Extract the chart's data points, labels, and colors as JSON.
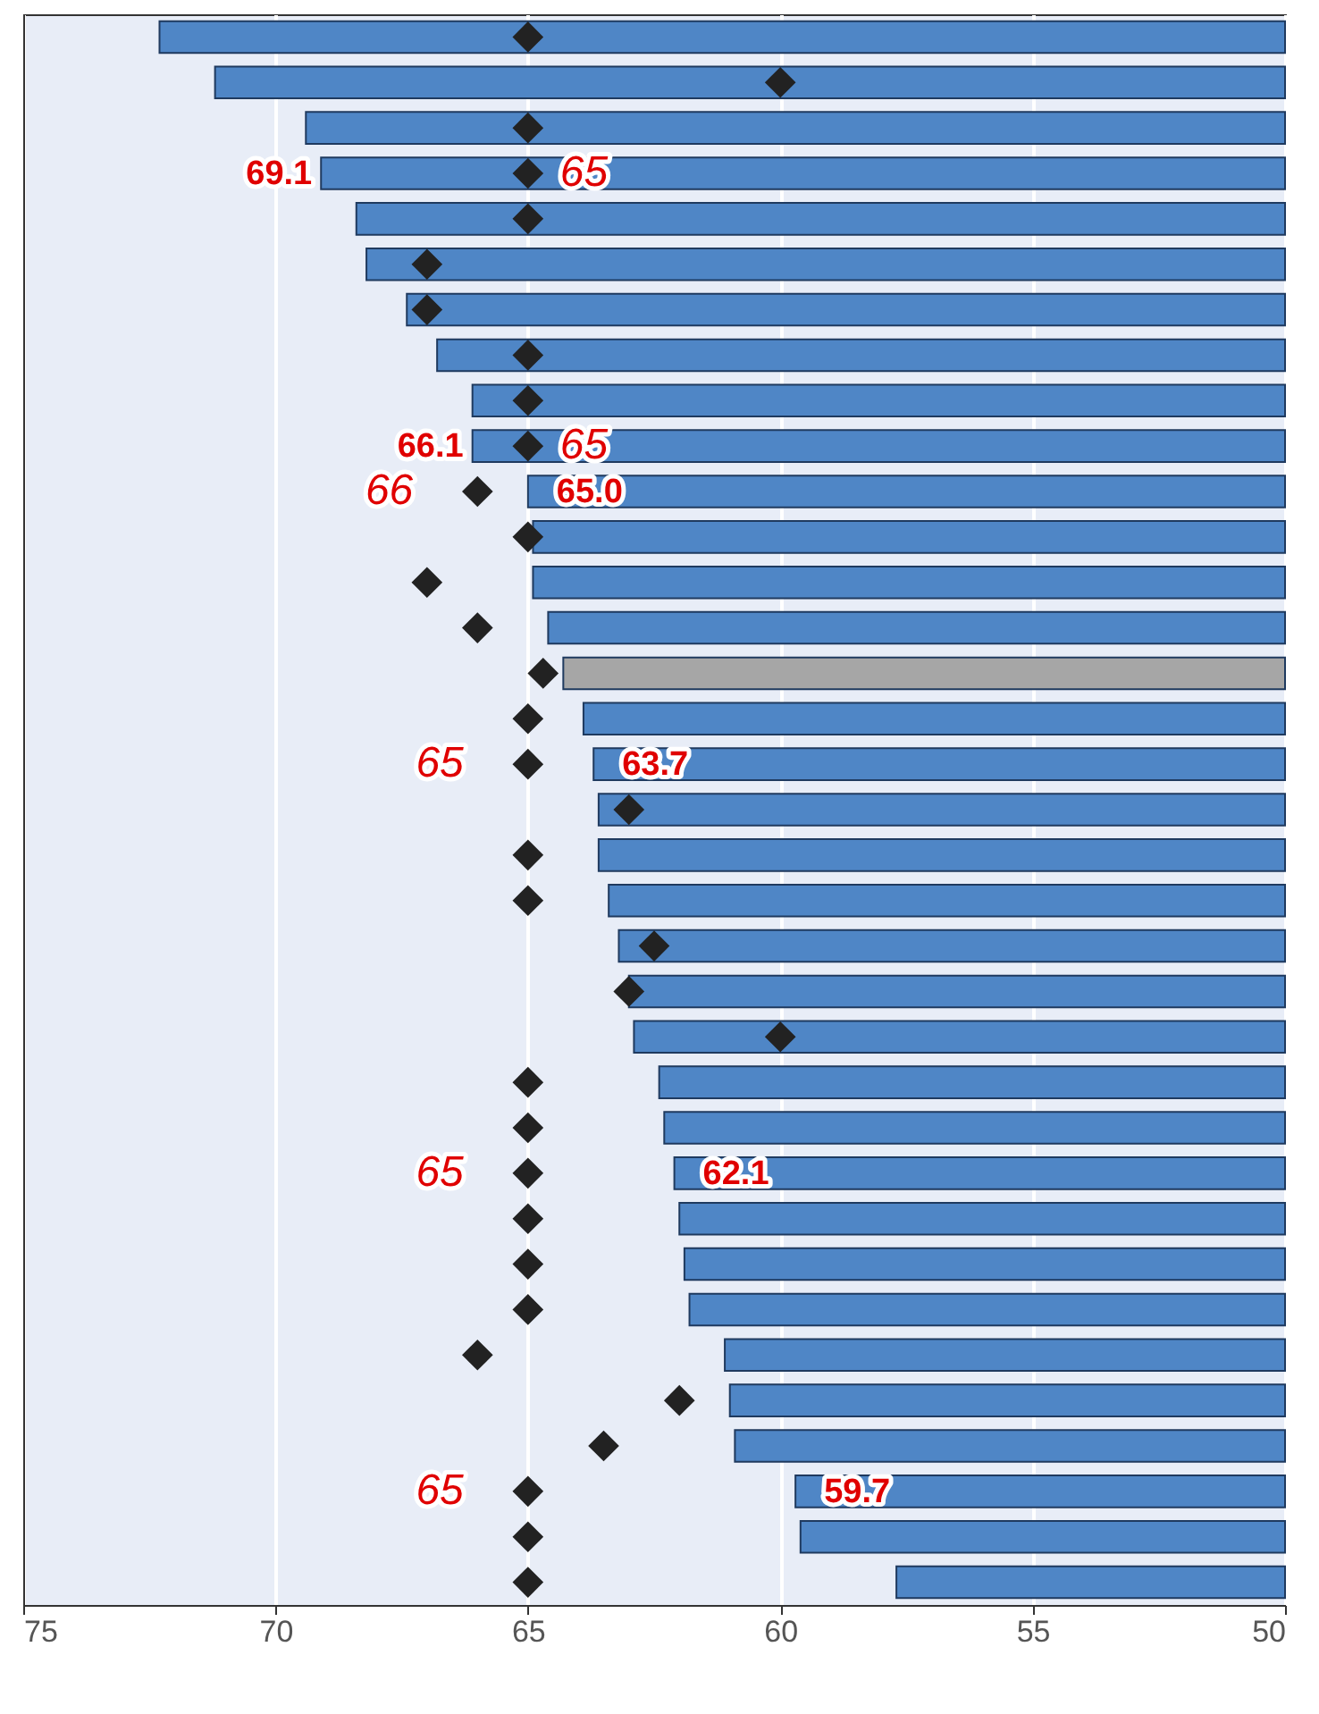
{
  "chart_data": {
    "type": "bar",
    "orientation": "horizontal",
    "categories": [
      null,
      null,
      null,
      null,
      null,
      null,
      null,
      null,
      null,
      null,
      null,
      null,
      null,
      null,
      null,
      null,
      null,
      null,
      null,
      null,
      null,
      null,
      null,
      null,
      null,
      null,
      null,
      null,
      null,
      null,
      null,
      null,
      null,
      null,
      null
    ],
    "series": [
      {
        "type": "bar",
        "colors": [
          "#4f86c6",
          "#4f86c6",
          "#4f86c6",
          "#4f86c6",
          "#4f86c6",
          "#4f86c6",
          "#4f86c6",
          "#4f86c6",
          "#4f86c6",
          "#4f86c6",
          "#4f86c6",
          "#4f86c6",
          "#4f86c6",
          "#4f86c6",
          "#a6a6a6",
          "#4f86c6",
          "#4f86c6",
          "#4f86c6",
          "#4f86c6",
          "#4f86c6",
          "#4f86c6",
          "#4f86c6",
          "#4f86c6",
          "#4f86c6",
          "#4f86c6",
          "#4f86c6",
          "#4f86c6",
          "#4f86c6",
          "#4f86c6",
          "#4f86c6",
          "#4f86c6",
          "#4f86c6",
          "#4f86c6",
          "#4f86c6",
          "#4f86c6"
        ],
        "values": [
          72.3,
          71.2,
          69.4,
          69.1,
          68.4,
          68.2,
          67.4,
          66.8,
          66.1,
          66.1,
          65.0,
          64.9,
          64.9,
          64.6,
          64.3,
          63.9,
          63.7,
          63.6,
          63.6,
          63.4,
          63.2,
          63.0,
          62.9,
          62.4,
          62.3,
          62.1,
          62.0,
          61.9,
          61.8,
          61.1,
          61.0,
          60.9,
          59.7,
          59.6,
          57.7
        ],
        "value_labels": [
          null,
          null,
          null,
          "69.1",
          null,
          null,
          null,
          null,
          null,
          "66.1",
          "65.0",
          null,
          null,
          null,
          null,
          null,
          "63.7",
          null,
          null,
          null,
          null,
          null,
          null,
          null,
          null,
          "62.1",
          null,
          null,
          null,
          null,
          null,
          null,
          "59.7",
          null,
          null
        ]
      },
      {
        "type": "scatter",
        "color": "#222222",
        "marker": "diamond",
        "values": [
          65,
          60,
          65,
          65,
          65,
          67,
          67,
          65,
          65,
          65,
          66,
          65,
          67,
          66,
          64.7,
          65,
          65,
          63,
          65,
          65,
          62.5,
          63,
          60,
          65,
          65,
          65,
          65,
          65,
          65,
          66,
          62,
          63.5,
          65,
          65,
          65
        ],
        "value_labels": [
          null,
          null,
          null,
          "65",
          null,
          null,
          null,
          null,
          null,
          "65",
          "66",
          null,
          null,
          null,
          null,
          null,
          "65",
          null,
          null,
          null,
          null,
          null,
          null,
          null,
          null,
          "65",
          null,
          null,
          null,
          null,
          null,
          null,
          "65",
          null,
          null
        ]
      }
    ],
    "xlim": [
      75,
      50
    ],
    "xticks": [
      75,
      70,
      65,
      60,
      55,
      50
    ],
    "grid": "x",
    "tick_labels": "x"
  }
}
